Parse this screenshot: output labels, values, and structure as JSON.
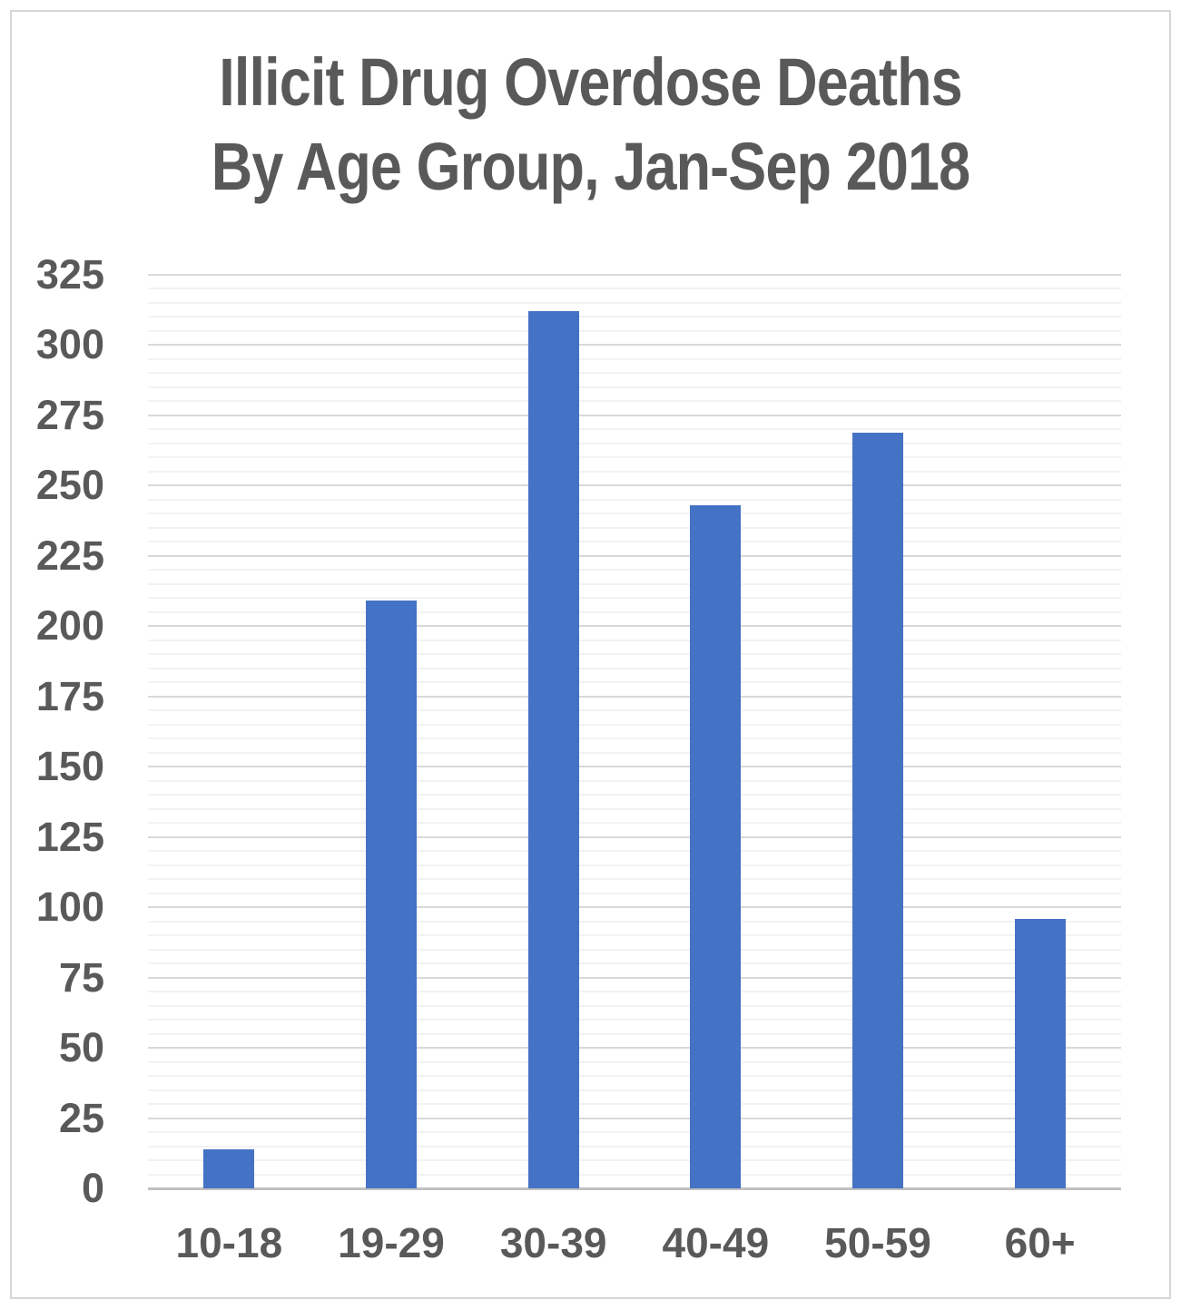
{
  "title": {
    "line1": "Illicit Drug Overdose Deaths",
    "line2": "By Age Group, Jan-Sep 2018",
    "color": "#595959"
  },
  "chart_data": {
    "type": "bar",
    "title": "Illicit Drug Overdose Deaths By Age Group, Jan-Sep 2018",
    "categories": [
      "10-18",
      "19-29",
      "30-39",
      "40-49",
      "50-59",
      "60+"
    ],
    "values": [
      14,
      209,
      312,
      243,
      269,
      96
    ],
    "xlabel": "",
    "ylabel": "",
    "ylim": [
      0,
      325
    ],
    "y_major_step": 25,
    "y_minor_step": 5,
    "y_tick_labels": [
      "0",
      "25",
      "50",
      "75",
      "100",
      "125",
      "150",
      "175",
      "200",
      "225",
      "250",
      "275",
      "300",
      "325"
    ],
    "grid": "on",
    "legend": "none",
    "colors": {
      "bar": "#4472C4",
      "major_grid": "#d9d9d9",
      "minor_grid": "#f2f2f2",
      "axis_line": "#c0c0c0",
      "tick_label": "#595959",
      "frame_border": "#d6d6d6"
    }
  }
}
